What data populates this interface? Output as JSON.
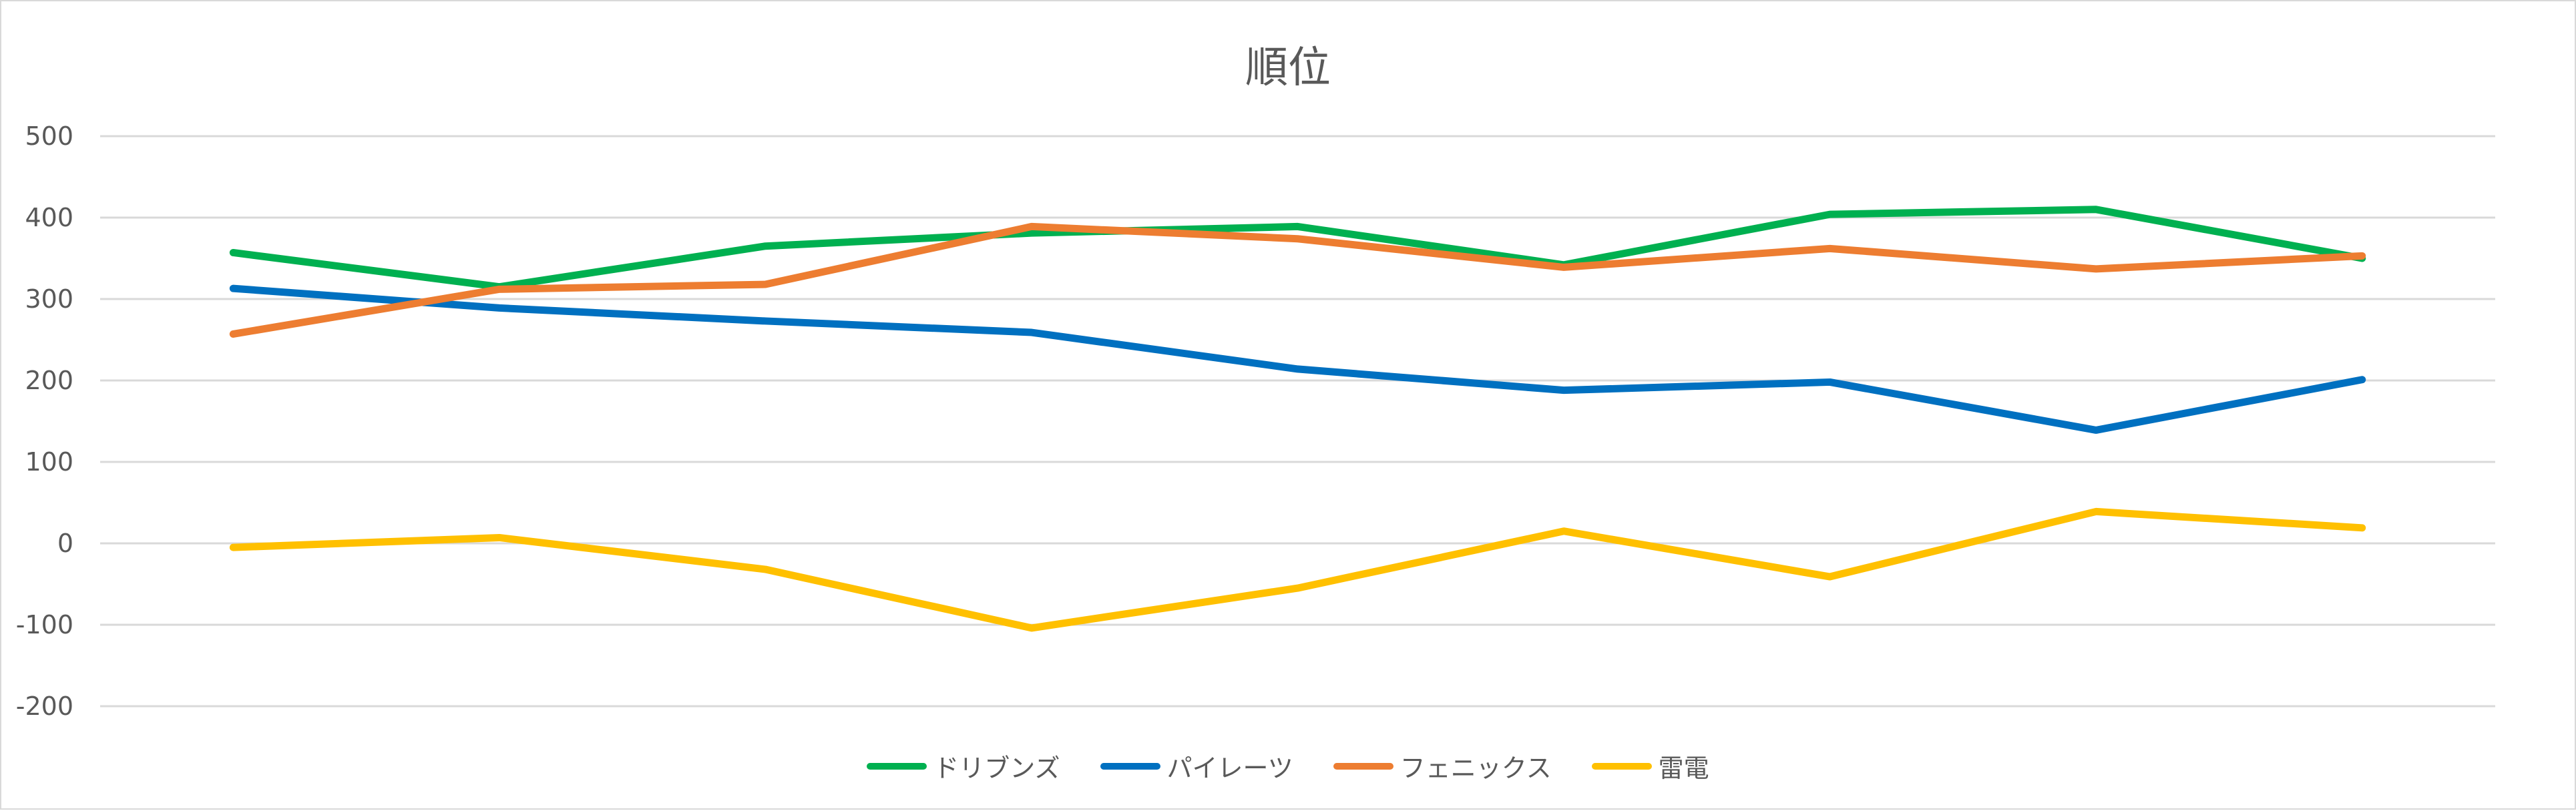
{
  "chart_data": {
    "type": "line",
    "title": "順位",
    "xlabel": "",
    "ylabel": "",
    "ylim": [
      -200,
      500
    ],
    "yticks": [
      500,
      400,
      300,
      200,
      100,
      0,
      -100,
      -200
    ],
    "grid": true,
    "legend_position": "bottom",
    "series": [
      {
        "name": "ドリブンズ",
        "color": "#00b050",
        "values": [
          357,
          315,
          365,
          381,
          389,
          342,
          404,
          410,
          350
        ]
      },
      {
        "name": "パイレーツ",
        "color": "#0070c0",
        "values": [
          313,
          289,
          273,
          259,
          214,
          188,
          198,
          139,
          201
        ]
      },
      {
        "name": "フェニックス",
        "color": "#ed7d31",
        "values": [
          257,
          312,
          318,
          389,
          374,
          339,
          362,
          337,
          353
        ]
      },
      {
        "name": "雷電",
        "color": "#ffc000",
        "values": [
          -5,
          7,
          -32,
          -104,
          -55,
          15,
          -41,
          39,
          19
        ]
      }
    ]
  }
}
